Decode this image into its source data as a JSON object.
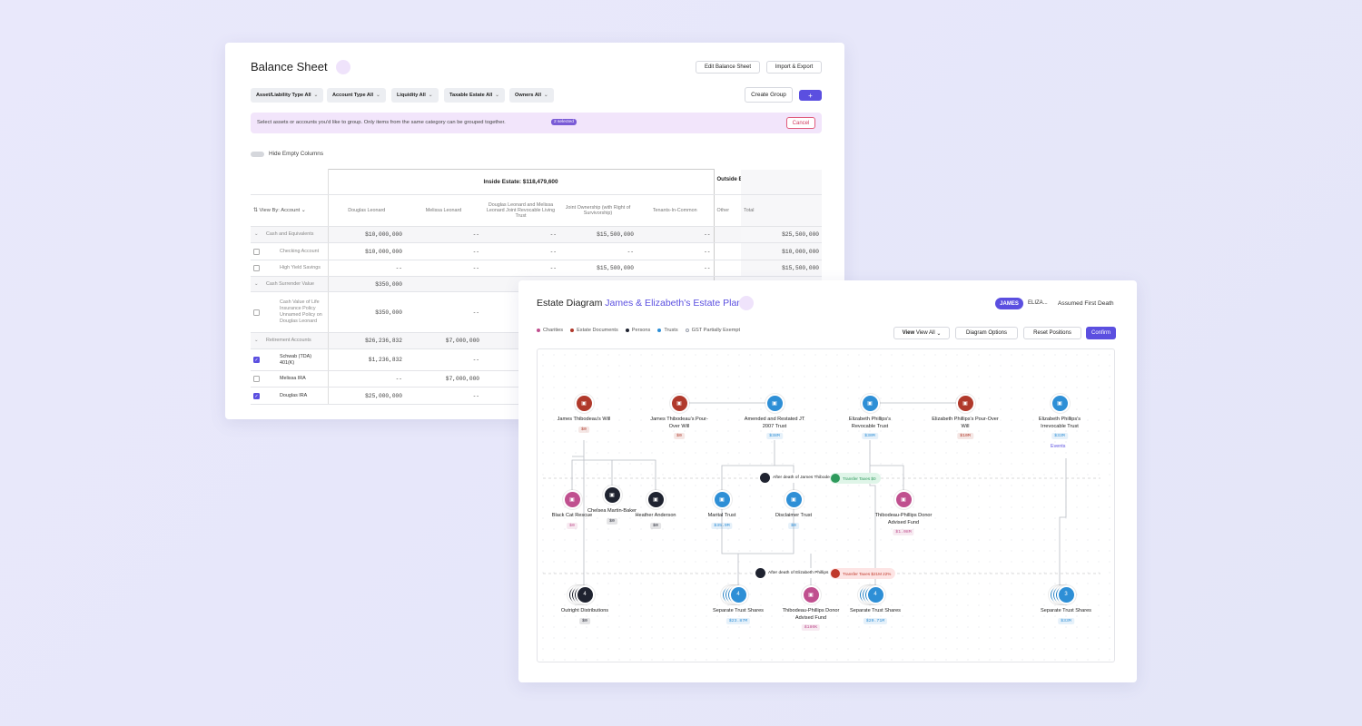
{
  "balance_sheet": {
    "title": "Balance Sheet",
    "actions": [
      "Edit Balance Sheet",
      "Import & Export"
    ],
    "filters": [
      "Asset/Liability Type All",
      "Account Type All",
      "Liquidity All",
      "Taxable Estate All",
      "Owners All"
    ],
    "create_group": "Create Group",
    "add_button": "+",
    "banner": {
      "text": "Select assets or accounts you'd like to group. Only items from the same category can be grouped together.",
      "badge": "2 selected",
      "cancel": "Cancel"
    },
    "toggle_label": "Hide Empty Columns",
    "inside_header": "Inside Estate: $118,479,600",
    "outside_header": "Outside Estate: $",
    "sort_label": "View By: Account",
    "columns": [
      "Douglas Leonard",
      "Melissa Leonard",
      "Douglas Leonard and Melissa Leonard Joint Revocable Living Trust",
      "Joint Ownership (with Right of Survivorship)",
      "Tenants-In-Common",
      "Other",
      "Total"
    ],
    "rows": [
      {
        "label": "Cash and Equivalents",
        "group": true,
        "cells": [
          "$10,000,000",
          "--",
          "--",
          "$15,500,000",
          "--"
        ],
        "total": "$25,500,000"
      },
      {
        "label": "Checking Account",
        "checked": false,
        "cells": [
          "$10,000,000",
          "--",
          "--",
          "--",
          "--"
        ],
        "total": "$10,000,000"
      },
      {
        "label": "High Yield Savings",
        "checked": false,
        "cells": [
          "--",
          "--",
          "--",
          "$15,500,000",
          "--"
        ],
        "total": "$15,500,000"
      },
      {
        "label": "Cash Surrender Value",
        "group": true,
        "cells": [
          "$350,000"
        ]
      },
      {
        "label": "Cash Value of Life Insurance Policy Unnamed Policy on Douglas Leonard",
        "checked": false,
        "cells": [
          "$350,000",
          "--"
        ]
      },
      {
        "label": "Retirement Accounts",
        "group": true,
        "cells": [
          "$26,236,832",
          "$7,000,000"
        ]
      },
      {
        "label": "Schwab (TDA) 401(K)",
        "checked": true,
        "cells": [
          "$1,236,832",
          "--"
        ]
      },
      {
        "label": "Melissa IRA",
        "checked": false,
        "cells": [
          "--",
          "$7,000,000"
        ]
      },
      {
        "label": "Douglas IRA",
        "checked": true,
        "cells": [
          "$25,000,000",
          "--"
        ]
      }
    ]
  },
  "estate_diagram": {
    "title": "Estate Diagram",
    "plan": "James & Elizabeth's Estate Plan",
    "tabs": [
      "JAMES",
      "ELIZA..."
    ],
    "assumption": "Assumed First Death",
    "legend": [
      {
        "name": "Charities",
        "color": "#c0508f"
      },
      {
        "name": "Estate Documents",
        "color": "#b0392b"
      },
      {
        "name": "Persons",
        "color": "#1f2330"
      },
      {
        "name": "Trusts",
        "color": "#2e8fd6"
      },
      {
        "name": "GST Partially Exempt",
        "color": "#9aa0ad"
      }
    ],
    "view_label": "View",
    "view_value": "View All",
    "buttons": [
      "Diagram Options",
      "Reset Positions",
      "Confirm"
    ],
    "nodes": [
      {
        "label": "James Thibodeau's Will",
        "value": "$0",
        "color": "#b0392b"
      },
      {
        "label": "James Thibodeau's Pour-Over Will",
        "value": "$0",
        "color": "#b0392b"
      },
      {
        "label": "Amended and Restated JT 2007 Trust",
        "value": "$38M",
        "color": "#2e8fd6"
      },
      {
        "label": "Elizabeth Phillips's Revocable Trust",
        "value": "$30M",
        "color": "#2e8fd6"
      },
      {
        "label": "Elizabeth Phillips's Pour-Over Will",
        "value": "$10M",
        "color": "#b0392b"
      },
      {
        "label": "Elizabeth Phillips's Irrevocable Trust",
        "value": "$33M",
        "color": "#2e8fd6",
        "link": "Events"
      },
      {
        "label": "Black Cat Rescue",
        "value": "$0",
        "color": "#c0508f"
      },
      {
        "label": "Chelsea Martin-Baker",
        "value": "$0",
        "color": "#1f2330"
      },
      {
        "label": "Heather Anderson",
        "value": "$0",
        "color": "#1f2330"
      },
      {
        "label": "Marital Trust",
        "value": "$35.9M",
        "color": "#2e8fd6"
      },
      {
        "label": "Disclaimer Trust",
        "value": "$0",
        "color": "#2e8fd6"
      },
      {
        "label": "Thibodeau-Phillips Donor Advised Fund",
        "value": "$1.08M",
        "color": "#c0508f"
      },
      {
        "label": "Outright Distributions",
        "value": "$0",
        "color": "#1f2330",
        "count": "4"
      },
      {
        "label": "Separate Trust Shares",
        "value": "$23.87M",
        "color": "#2e8fd6",
        "count": "4"
      },
      {
        "label": "Thibodeau-Phillips Donor Advised Fund",
        "value": "$180K",
        "color": "#c0508f"
      },
      {
        "label": "Separate Trust Shares",
        "value": "$20.71M",
        "color": "#2e8fd6",
        "count": "4"
      },
      {
        "label": "Separate Trust Shares",
        "value": "$33M",
        "color": "#2e8fd6",
        "count": "3"
      }
    ],
    "events": [
      {
        "label": "After death of James Thibodeau",
        "tax": "Transfer Taxes $0"
      },
      {
        "label": "After death of Elizabeth Phillips",
        "tax": "Transfer Taxes $21M 22%"
      }
    ]
  }
}
